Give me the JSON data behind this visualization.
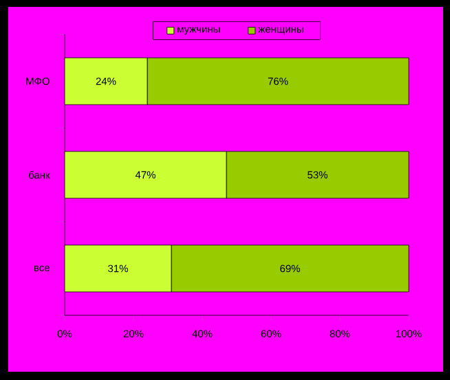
{
  "chart_data": {
    "type": "bar",
    "orientation": "horizontal",
    "stacked": true,
    "categories": [
      "МФО",
      "банк",
      "все"
    ],
    "series": [
      {
        "name": "мужчины",
        "color": "#ccff33",
        "values": [
          24,
          47,
          31
        ],
        "value_labels": [
          "24%",
          "47%",
          "31%"
        ]
      },
      {
        "name": "женщины",
        "color": "#99cc00",
        "values": [
          76,
          53,
          69
        ],
        "value_labels": [
          "76%",
          "53%",
          "69%"
        ]
      }
    ],
    "xlim": [
      0,
      100
    ],
    "xticks": [
      {
        "value": 0,
        "label": "0%"
      },
      {
        "value": 20,
        "label": "20%"
      },
      {
        "value": 40,
        "label": "40%"
      },
      {
        "value": 60,
        "label": "60%"
      },
      {
        "value": 80,
        "label": "80%"
      },
      {
        "value": 100,
        "label": "100%"
      }
    ],
    "grid": false,
    "legend": "top"
  }
}
